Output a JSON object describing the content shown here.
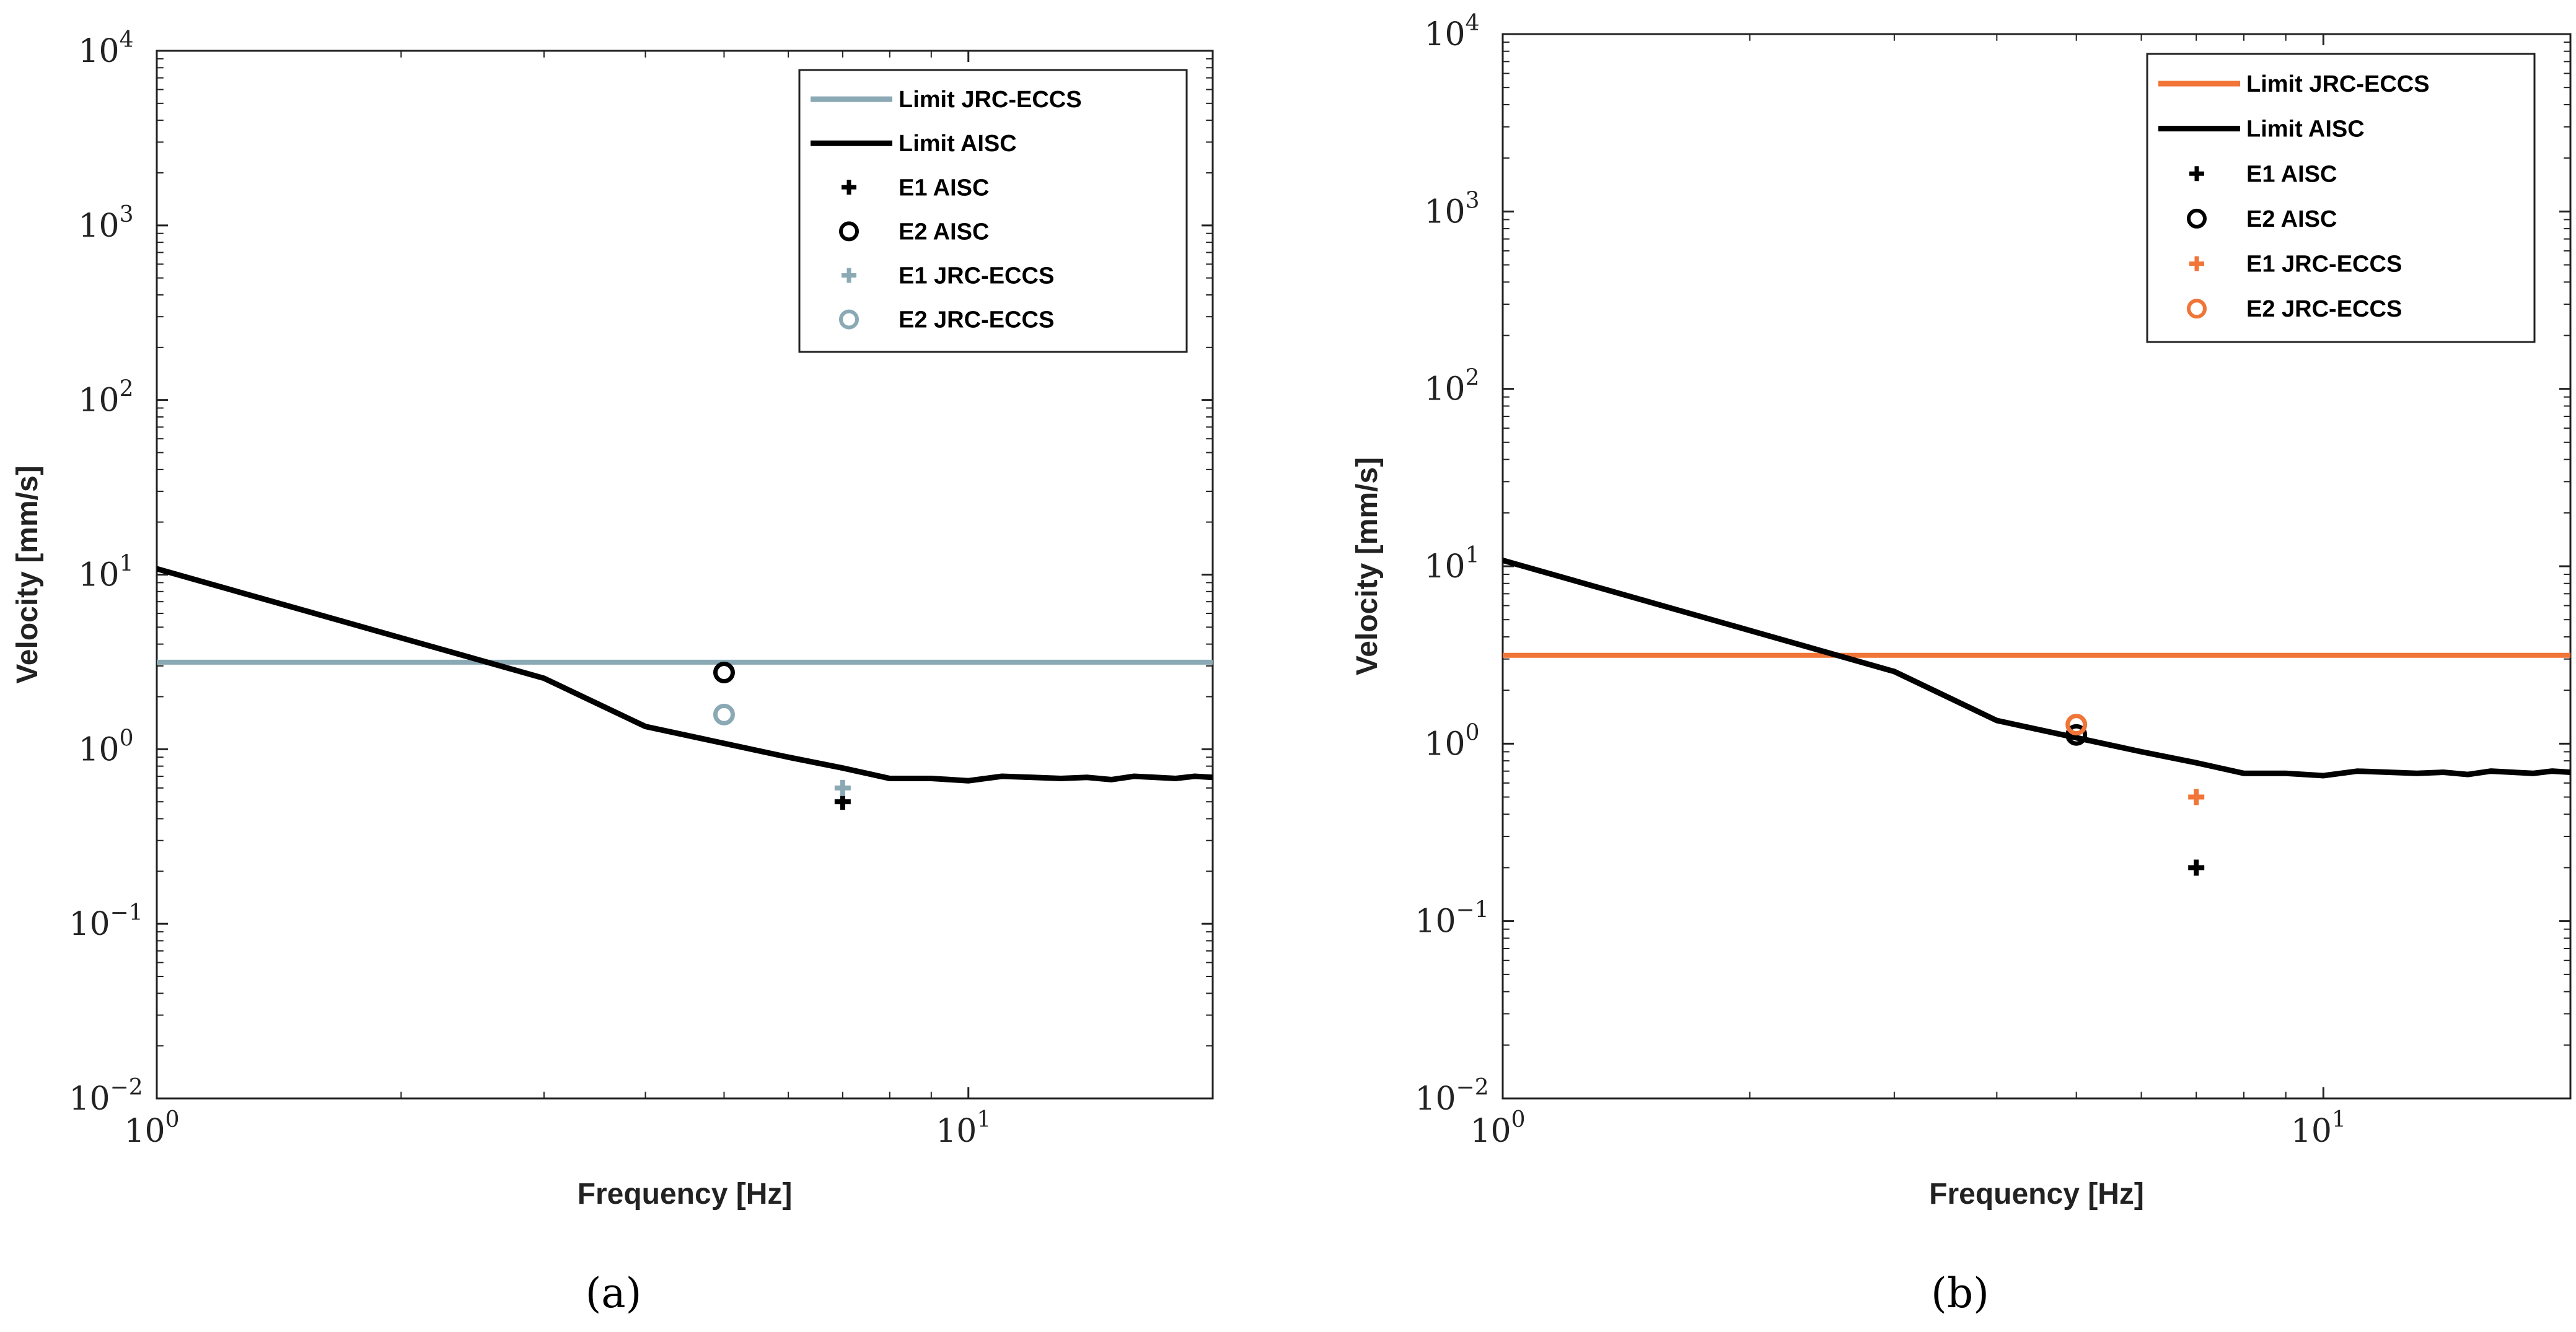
{
  "colors": {
    "aisc": "#000000",
    "jrc_a": "#8aa9b5",
    "jrc_b": "#f07537"
  },
  "chart_data": [
    {
      "type": "scatter",
      "panel_label": "(a)",
      "xlabel": "Frequency [Hz]",
      "ylabel": "Velocity [mm/s]",
      "xscale": "log",
      "yscale": "log",
      "xlim": [
        1,
        20
      ],
      "ylim": [
        0.01,
        10000
      ],
      "x_ticks": [
        {
          "base": "10",
          "exp": "0",
          "value": 1
        },
        {
          "base": "10",
          "exp": "1",
          "value": 10
        }
      ],
      "y_ticks": [
        {
          "base": "10",
          "exp": "4",
          "value": 10000
        },
        {
          "base": "10",
          "exp": "3",
          "value": 1000
        },
        {
          "base": "10",
          "exp": "2",
          "value": 100
        },
        {
          "base": "10",
          "exp": "1",
          "value": 10
        },
        {
          "base": "10",
          "exp": "0",
          "value": 1
        },
        {
          "base": "10",
          "exp": "−1",
          "value": 0.1
        },
        {
          "base": "10",
          "exp": "−2",
          "value": 0.01
        }
      ],
      "legend_position": "top-right",
      "jrc_color_key": "jrc_a",
      "series": [
        {
          "name": "Limit JRC-ECCS",
          "kind": "line",
          "color_key": "jrc_a",
          "x": [
            1,
            20
          ],
          "y": [
            3.15,
            3.15
          ]
        },
        {
          "name": "Limit AISC",
          "kind": "line",
          "color_key": "aisc",
          "x": [
            1,
            3,
            4,
            5,
            6,
            7,
            8,
            9,
            10,
            11,
            12,
            13,
            14,
            15,
            16,
            17,
            18,
            19,
            20
          ],
          "y": [
            10.8,
            2.55,
            1.35,
            1.08,
            0.9,
            0.78,
            0.68,
            0.68,
            0.66,
            0.7,
            0.69,
            0.68,
            0.69,
            0.67,
            0.7,
            0.69,
            0.68,
            0.7,
            0.69
          ]
        },
        {
          "name": "E1 AISC",
          "kind": "marker",
          "marker": "plus",
          "color_key": "aisc",
          "x": [
            7
          ],
          "y": [
            0.5
          ]
        },
        {
          "name": "E2 AISC",
          "kind": "marker",
          "marker": "circle",
          "color_key": "aisc",
          "x": [
            5
          ],
          "y": [
            2.75
          ]
        },
        {
          "name": "E1 JRC-ECCS",
          "kind": "marker",
          "marker": "plus",
          "color_key": "jrc_a",
          "x": [
            7
          ],
          "y": [
            0.6
          ]
        },
        {
          "name": "E2 JRC-ECCS",
          "kind": "marker",
          "marker": "circle",
          "color_key": "jrc_a",
          "x": [
            5
          ],
          "y": [
            1.58
          ]
        }
      ]
    },
    {
      "type": "scatter",
      "panel_label": "(b)",
      "xlabel": "Frequency [Hz]",
      "ylabel": "Velocity [mm/s]",
      "xscale": "log",
      "yscale": "log",
      "xlim": [
        1,
        20
      ],
      "ylim": [
        0.01,
        10000
      ],
      "x_ticks": [
        {
          "base": "10",
          "exp": "0",
          "value": 1
        },
        {
          "base": "10",
          "exp": "1",
          "value": 10
        }
      ],
      "y_ticks": [
        {
          "base": "10",
          "exp": "4",
          "value": 10000
        },
        {
          "base": "10",
          "exp": "3",
          "value": 1000
        },
        {
          "base": "10",
          "exp": "2",
          "value": 100
        },
        {
          "base": "10",
          "exp": "1",
          "value": 10
        },
        {
          "base": "10",
          "exp": "0",
          "value": 1
        },
        {
          "base": "10",
          "exp": "−1",
          "value": 0.1
        },
        {
          "base": "10",
          "exp": "−2",
          "value": 0.01
        }
      ],
      "legend_position": "top-right",
      "jrc_color_key": "jrc_b",
      "series": [
        {
          "name": "Limit JRC-ECCS",
          "kind": "line",
          "color_key": "jrc_b",
          "x": [
            1,
            20
          ],
          "y": [
            3.15,
            3.15
          ]
        },
        {
          "name": "Limit AISC",
          "kind": "line",
          "color_key": "aisc",
          "x": [
            1,
            3,
            4,
            5,
            6,
            7,
            8,
            9,
            10,
            11,
            12,
            13,
            14,
            15,
            16,
            17,
            18,
            19,
            20
          ],
          "y": [
            10.8,
            2.55,
            1.35,
            1.08,
            0.9,
            0.78,
            0.68,
            0.68,
            0.66,
            0.7,
            0.69,
            0.68,
            0.69,
            0.67,
            0.7,
            0.69,
            0.68,
            0.7,
            0.69
          ]
        },
        {
          "name": "E1 AISC",
          "kind": "marker",
          "marker": "plus",
          "color_key": "aisc",
          "x": [
            7
          ],
          "y": [
            0.2
          ]
        },
        {
          "name": "E2 AISC",
          "kind": "marker",
          "marker": "circle",
          "color_key": "aisc",
          "x": [
            5
          ],
          "y": [
            1.12
          ]
        },
        {
          "name": "E1 JRC-ECCS",
          "kind": "marker",
          "marker": "plus",
          "color_key": "jrc_b",
          "x": [
            7
          ],
          "y": [
            0.5
          ]
        },
        {
          "name": "E2 JRC-ECCS",
          "kind": "marker",
          "marker": "circle",
          "color_key": "jrc_b",
          "x": [
            5
          ],
          "y": [
            1.28
          ]
        }
      ]
    }
  ]
}
